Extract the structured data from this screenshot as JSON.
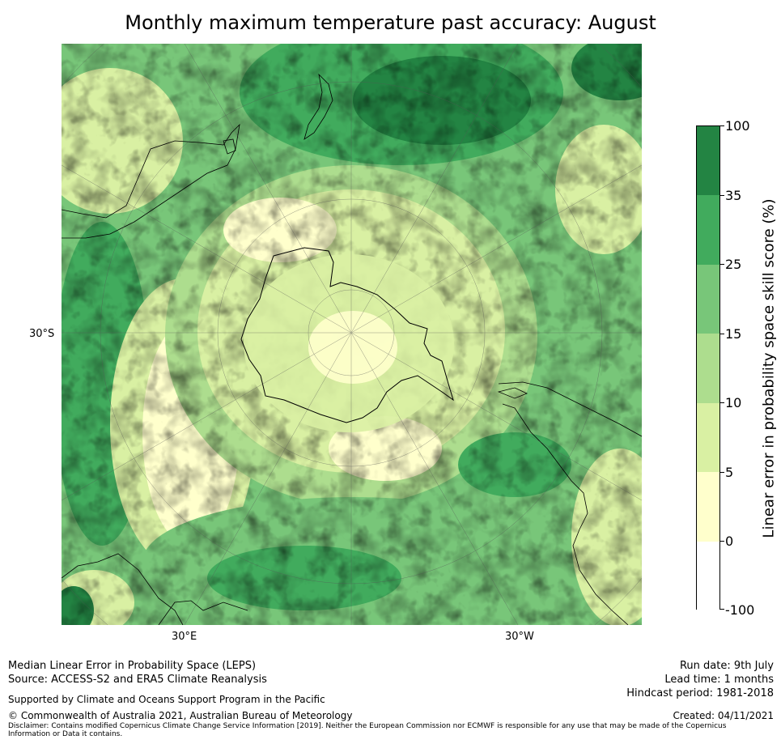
{
  "title": "Monthly maximum temperature past accuracy: August",
  "map": {
    "labels": {
      "lat": "30°S",
      "lon_left": "30°E",
      "lon_right": "30°W"
    },
    "palette": {
      "white": "#ffffff",
      "lightyellow": "#ffffcc",
      "yellowgreen": "#d9f0a3",
      "lightgreen": "#addd8e",
      "green": "#78c679",
      "mediumgreen": "#41ab5d",
      "darkgreen": "#238443"
    }
  },
  "colorbar": {
    "title": "Linear error in probability space skill score (%)",
    "ticks": [
      "100",
      "35",
      "25",
      "15",
      "10",
      "5",
      "0",
      "-100"
    ],
    "colors": [
      "#238443",
      "#41ab5d",
      "#78c679",
      "#addd8e",
      "#d9f0a3",
      "#ffffcc",
      "#ffffff"
    ]
  },
  "footer": {
    "left1": "Median Linear Error in Probability Space (LEPS)",
    "left2": "Source: ACCESS-S2 and ERA5 Climate Reanalysis",
    "support": "Supported by Climate and Oceans Support Program in the Pacific",
    "copyright": "© Commonwealth of Australia 2021, Australian Bureau of Meteorology",
    "disclaimer": "Disclaimer: Contains modified Copernicus Climate Change Service Information [2019]. Neither the European Commission nor ECMWF is responsible for any use that may be made of the Copernicus Information or Data it contains.",
    "run_date": "Run date: 9th July",
    "lead_time": "Lead time: 1 months",
    "hindcast": "Hindcast period: 1981-2018",
    "created": "Created: 04/11/2021"
  }
}
